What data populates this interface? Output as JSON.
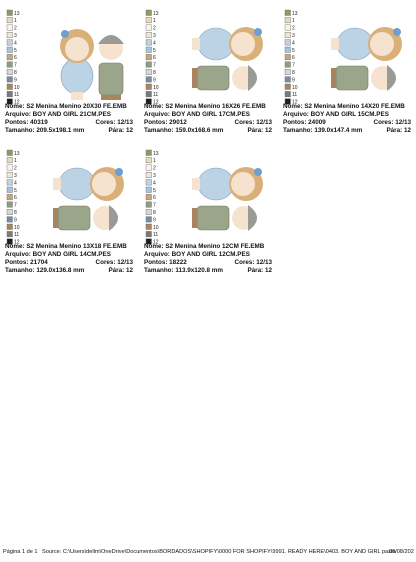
{
  "swatch_labels": [
    "13",
    "1",
    "2",
    "3",
    "4",
    "5",
    "6",
    "7",
    "8",
    "9",
    "10",
    "11",
    "12"
  ],
  "swatch_colors": [
    "#8a9a6a",
    "#e9d9b8",
    "#f6f4ee",
    "#efe6d6",
    "#bcd3e6",
    "#a8c4dd",
    "#c9a57a",
    "#8d9c84",
    "#d8d8d4",
    "#6f8fae",
    "#a88460",
    "#7a7a78",
    "#1e1e1e"
  ],
  "cards": [
    {
      "nome": "Nome: S2 Menina Menino 20X30 FE.EMB",
      "arquivo": "Arquivo: BOY AND GIRL 21CM.PES",
      "pontos": "Pontos: 40319",
      "cores": "Cores: 12/13",
      "tamanho": "Tamanho: 209.5x198.1 mm",
      "para": "Pára: 12"
    },
    {
      "nome": "Nome: S2 Menina Menino 16X26 FE.EMB",
      "arquivo": "Arquivo: BOY AND GIRL 17CM.PES",
      "pontos": "Pontos: 29012",
      "cores": "Cores: 12/13",
      "tamanho": "Tamanho: 159.0x168.6 mm",
      "para": "Pára: 12"
    },
    {
      "nome": "Nome: S2 Menina Menino 14X20 FE.EMB",
      "arquivo": "Arquivo: BOY AND GIRL 15CM.PES",
      "pontos": "Pontos: 24009",
      "cores": "Cores: 12/13",
      "tamanho": "Tamanho: 139.0x147.4 mm",
      "para": "Pára: 12"
    },
    {
      "nome": "Nome: S2 Menina Menino 13X18 FE.EMB",
      "arquivo": "Arquivo: BOY AND GIRL 14CM.PES",
      "pontos": "Pontos: 21704",
      "cores": "Cores: 12/13",
      "tamanho": "Tamanho: 129.0x136.8 mm",
      "para": "Pára: 12"
    },
    {
      "nome": "Nome: S2 Menina Menino 12CM FE.EMB",
      "arquivo": "Arquivo: BOY AND GIRL 12CM.PES",
      "pontos": "Pontos: 18222",
      "cores": "Cores: 12/13",
      "tamanho": "Tamanho: 113.9x120.8 mm",
      "para": "Pára: 12"
    }
  ],
  "footer": {
    "page": "Página 1 de 1",
    "source": "Source: C:\\Users\\dellm\\OneDrive\\Documentos\\BORDADOS\\SHOPIFY\\0000 FOR SHOPIFY\\9991. READY HERE\\0403. BOY AND GIRL pasta",
    "date": "06/08/202"
  }
}
